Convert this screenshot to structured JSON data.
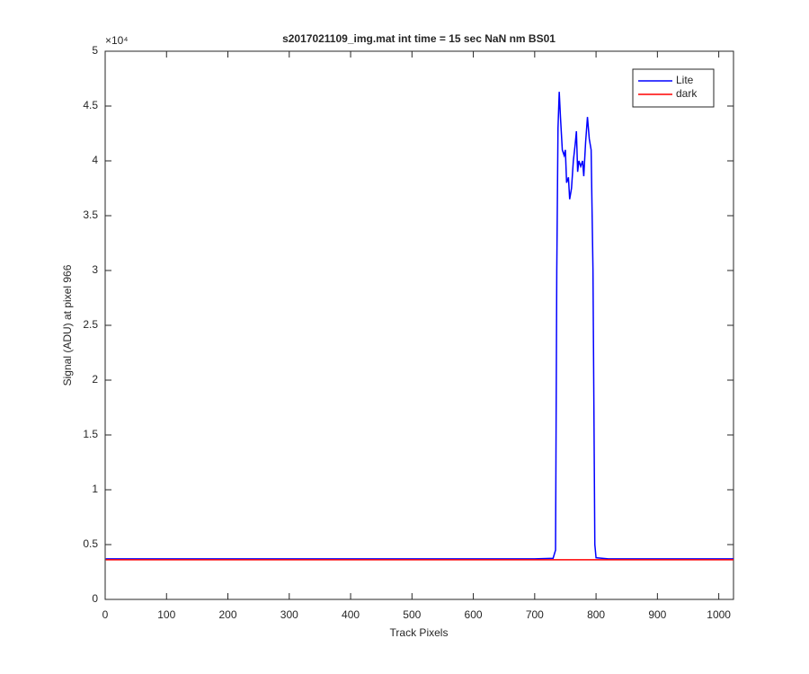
{
  "chart_data": {
    "type": "line",
    "title": "s2017021109_img.mat int time = 15 sec  NaN nm BS01",
    "xlabel": "Track Pixels",
    "ylabel": "Signal (ADU) at pixel 966",
    "y_multiplier": "×10⁴",
    "xlim": [
      0,
      1024
    ],
    "xticks": [
      0,
      100,
      200,
      300,
      400,
      500,
      600,
      700,
      800,
      900,
      1000
    ],
    "ylim": [
      0,
      50000
    ],
    "yticks": [
      {
        "value": 0,
        "label": "0"
      },
      {
        "value": 5000,
        "label": "0.5"
      },
      {
        "value": 10000,
        "label": "1"
      },
      {
        "value": 15000,
        "label": "1.5"
      },
      {
        "value": 20000,
        "label": "2"
      },
      {
        "value": 25000,
        "label": "2.5"
      },
      {
        "value": 30000,
        "label": "3"
      },
      {
        "value": 35000,
        "label": "3.5"
      },
      {
        "value": 40000,
        "label": "4"
      },
      {
        "value": 45000,
        "label": "4.5"
      },
      {
        "value": 50000,
        "label": "5"
      }
    ],
    "grid": false,
    "legend": "top-right",
    "series": [
      {
        "name": "Lite",
        "color": "#0000ff",
        "x": [
          1,
          100,
          200,
          300,
          400,
          500,
          600,
          700,
          730,
          734,
          736,
          738,
          740,
          742,
          745,
          748,
          750,
          752,
          755,
          757,
          760,
          763,
          766,
          768,
          770,
          772,
          775,
          778,
          780,
          783,
          786,
          789,
          792,
          795,
          798,
          800,
          820,
          900,
          1024
        ],
        "values": [
          3700,
          3700,
          3700,
          3700,
          3700,
          3700,
          3700,
          3700,
          3750,
          4500,
          30000,
          43000,
          46300,
          44000,
          41000,
          40500,
          41000,
          38000,
          38500,
          36500,
          37500,
          40000,
          41500,
          42700,
          39000,
          40000,
          39500,
          40000,
          38600,
          41700,
          44000,
          42000,
          41000,
          30000,
          5000,
          3800,
          3700,
          3700,
          3700
        ]
      },
      {
        "name": "dark",
        "color": "#ff0000",
        "x": [
          1,
          1024
        ],
        "values": [
          3620,
          3620
        ]
      }
    ]
  }
}
